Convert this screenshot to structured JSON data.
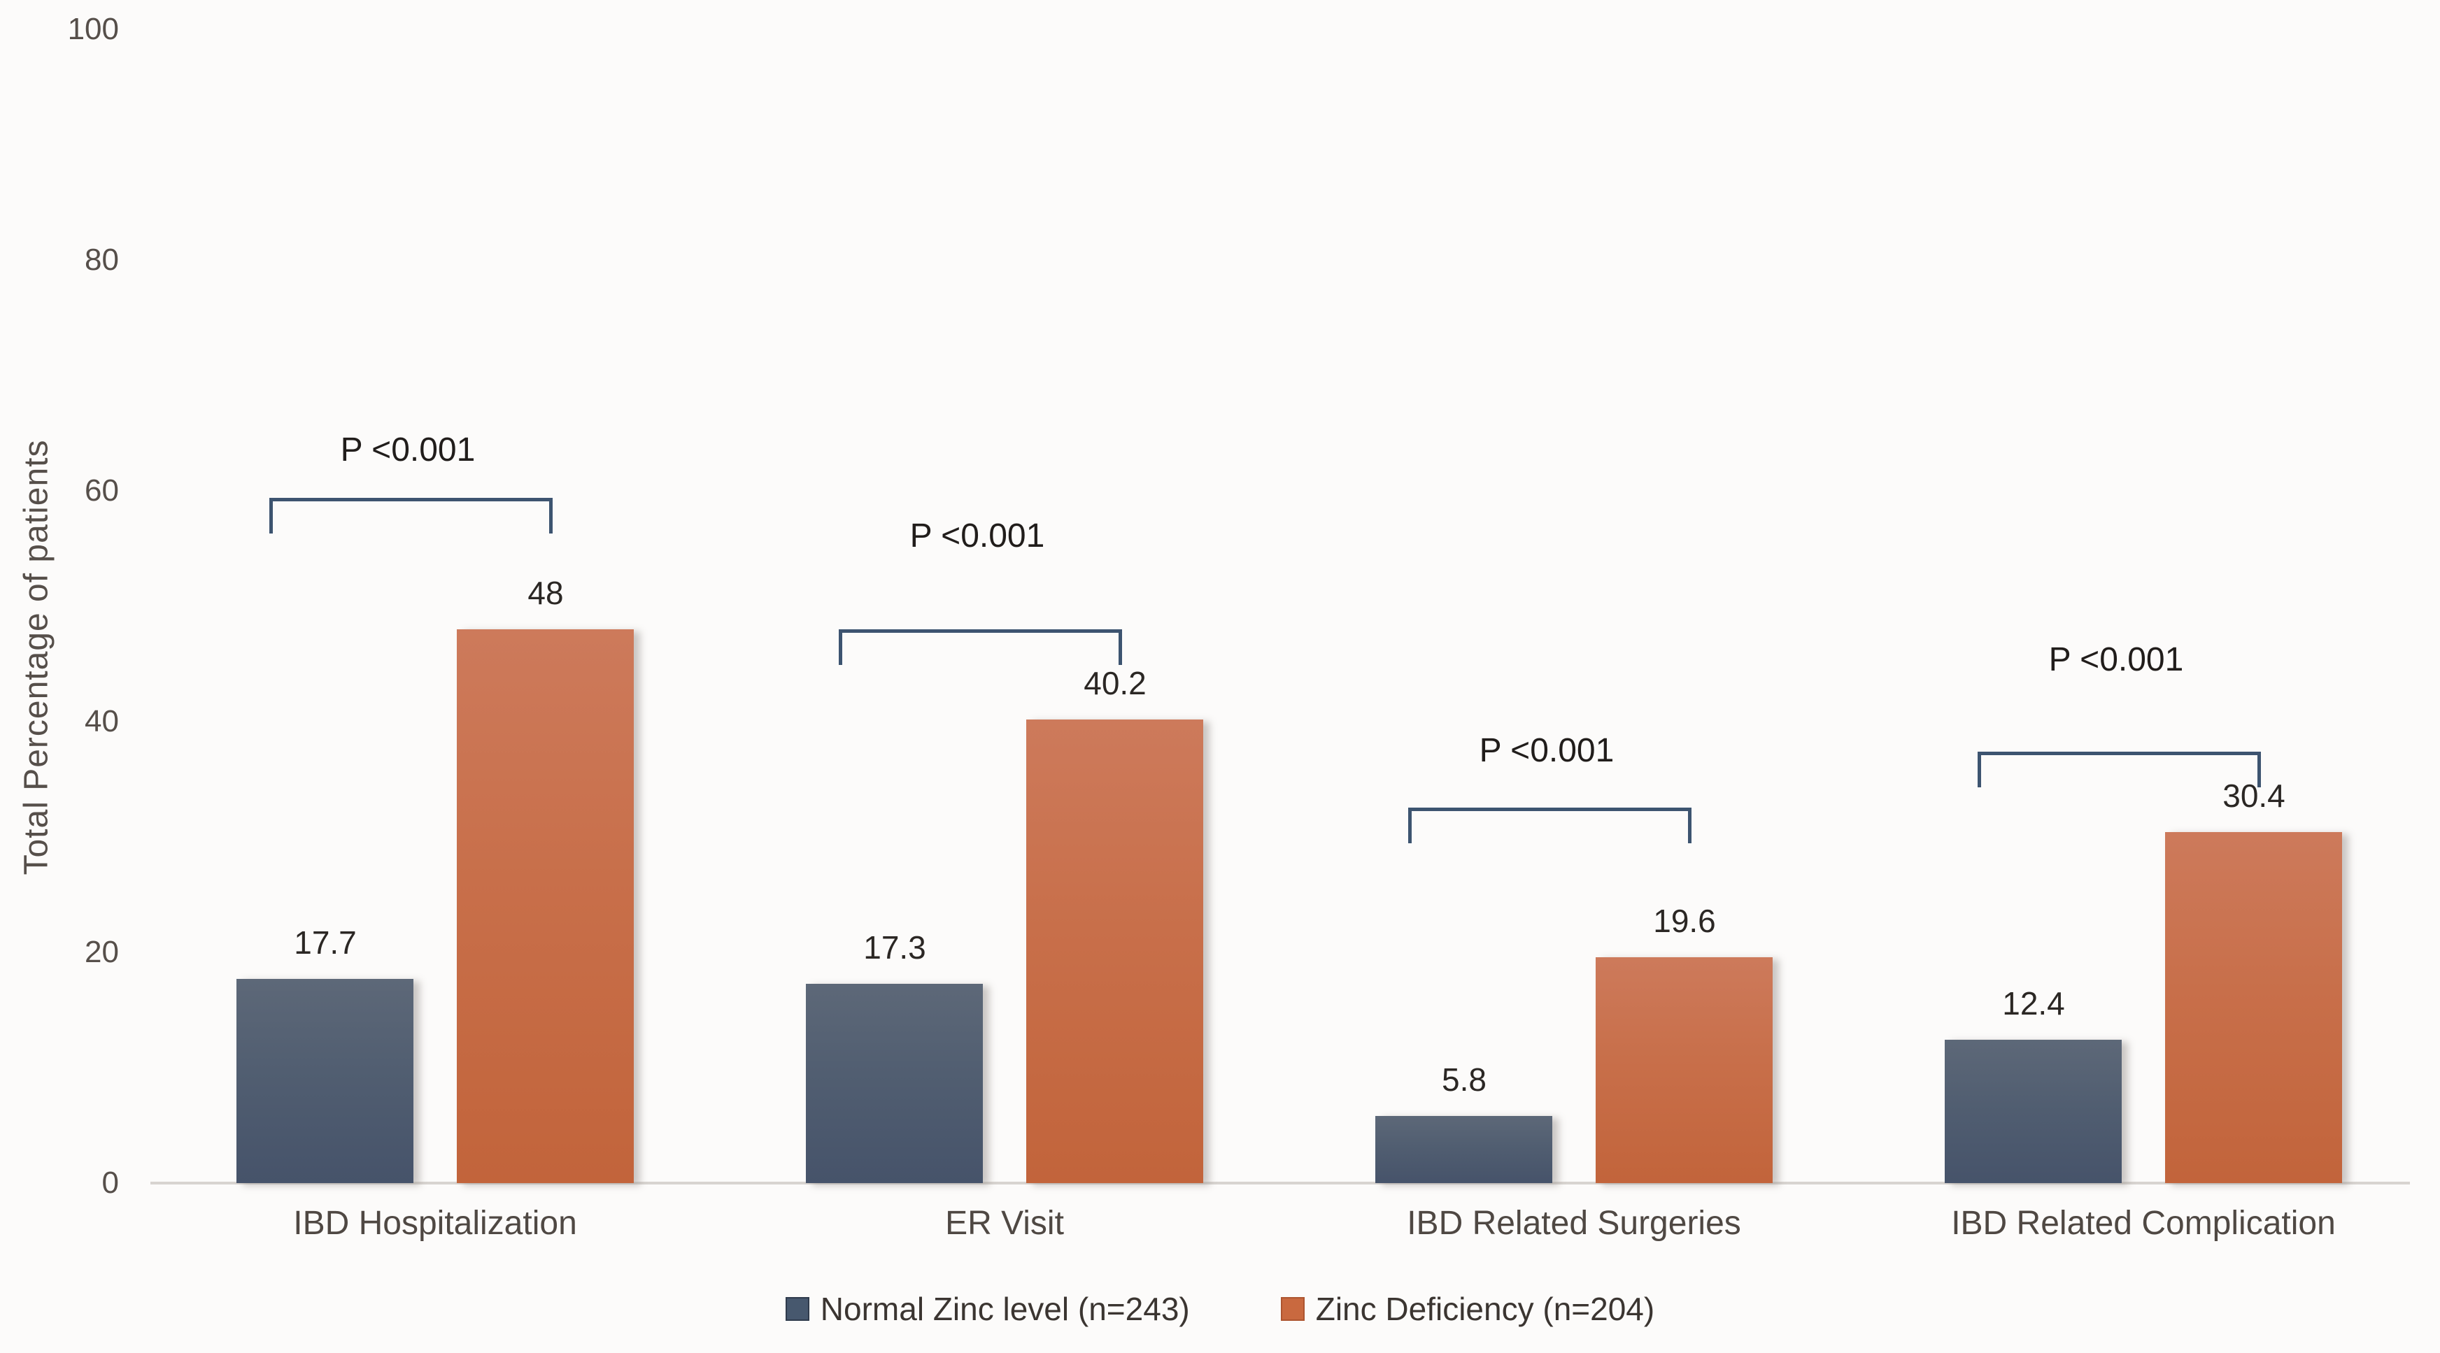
{
  "chart_data": {
    "type": "bar",
    "title": "",
    "xlabel": "",
    "ylabel": "Total Percentage of patients",
    "ylim": [
      0,
      100
    ],
    "yticks": [
      0,
      20,
      40,
      60,
      80,
      100
    ],
    "grid": false,
    "legend_position": "bottom-center",
    "categories": [
      "IBD Hospitalization",
      "ER Visit",
      "IBD Related Surgeries",
      "IBD Related Complication"
    ],
    "series": [
      {
        "name": "Normal Zinc level (n=243)",
        "color_top": "#5d6878",
        "color_bottom": "#46536a",
        "values": [
          17.7,
          17.3,
          5.8,
          12.4
        ],
        "value_labels": [
          "17.7",
          "17.3",
          "5.8",
          "12.4"
        ]
      },
      {
        "name": "Zinc Deficiency (n=204)",
        "color_top": "#cd7a5b",
        "color_bottom": "#c2643b",
        "values": [
          48,
          40.2,
          19.6,
          30.4
        ],
        "value_labels": [
          "48",
          "40.2",
          "19.6",
          "30.4"
        ]
      }
    ],
    "annotations": [
      {
        "group": "IBD Hospitalization",
        "text": "P <0.001"
      },
      {
        "group": "ER Visit",
        "text": "P <0.001"
      },
      {
        "group": "IBD Related Surgeries",
        "text": "P <0.001"
      },
      {
        "group": "IBD Related Complication",
        "text": "P <0.001"
      }
    ],
    "bracket_color": "#3d5470"
  }
}
